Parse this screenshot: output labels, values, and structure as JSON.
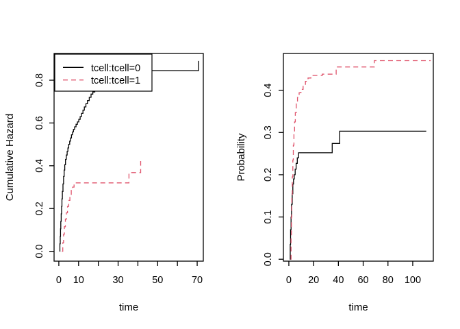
{
  "figure": {
    "background": "#ffffff",
    "curve_black": "#000000",
    "curve_pink": "#DF536B"
  },
  "chart_data": [
    {
      "type": "line",
      "subtype": "step-survival-curve",
      "title": "",
      "xlabel": "time",
      "ylabel": "Cumulative Hazard",
      "xlim": [
        -2.4,
        73.1
      ],
      "ylim": [
        -0.046,
        0.925
      ],
      "xticks": [
        0,
        10,
        20,
        30,
        40,
        50,
        60,
        70
      ],
      "xtick_labels": [
        "0",
        "10",
        "",
        "30",
        "",
        "50",
        "",
        "70"
      ],
      "yticks": [
        0,
        0.2,
        0.4,
        0.6,
        0.8
      ],
      "ytick_labels": [
        "0.0",
        "0.2",
        "0.4",
        "0.6",
        "0.8"
      ],
      "grid": false,
      "legend": {
        "visible": true,
        "position": "topleft",
        "entries": [
          "tcell:tcell=0",
          "tcell:tcell=1"
        ]
      },
      "series": [
        {
          "name": "tcell:tcell=0",
          "color": "#000000",
          "line_style": "solid",
          "points": [
            [
              0.4,
              0
            ],
            [
              0.55,
              0.035
            ],
            [
              0.7,
              0.07
            ],
            [
              0.85,
              0.105
            ],
            [
              1.0,
              0.14
            ],
            [
              1.2,
              0.175
            ],
            [
              1.4,
              0.21
            ],
            [
              1.6,
              0.245
            ],
            [
              1.8,
              0.28
            ],
            [
              2.1,
              0.315
            ],
            [
              2.4,
              0.35
            ],
            [
              2.7,
              0.38
            ],
            [
              3.0,
              0.405
            ],
            [
              3.4,
              0.43
            ],
            [
              3.8,
              0.45
            ],
            [
              4.2,
              0.467
            ],
            [
              4.6,
              0.483
            ],
            [
              5.0,
              0.5
            ],
            [
              5.5,
              0.515
            ],
            [
              5.9,
              0.53
            ],
            [
              6.4,
              0.545
            ],
            [
              6.9,
              0.558
            ],
            [
              7.4,
              0.57
            ],
            [
              8.0,
              0.582
            ],
            [
              8.7,
              0.594
            ],
            [
              9.4,
              0.605
            ],
            [
              10.1,
              0.617
            ],
            [
              10.8,
              0.63
            ],
            [
              11.5,
              0.645
            ],
            [
              12.2,
              0.66
            ],
            [
              12.9,
              0.675
            ],
            [
              13.7,
              0.69
            ],
            [
              14.5,
              0.705
            ],
            [
              15.4,
              0.72
            ],
            [
              16.3,
              0.735
            ],
            [
              17.2,
              0.745
            ],
            [
              18.2,
              0.755
            ],
            [
              19.5,
              0.765
            ],
            [
              21.0,
              0.776
            ],
            [
              23.0,
              0.787
            ],
            [
              25.0,
              0.797
            ],
            [
              27.5,
              0.807
            ],
            [
              30.0,
              0.817
            ],
            [
              33.0,
              0.827
            ],
            [
              36.0,
              0.837
            ],
            [
              39.0,
              0.845
            ],
            [
              70.5,
              0.845
            ],
            [
              70.7,
              0.89
            ]
          ]
        },
        {
          "name": "tcell:tcell=1",
          "color": "#DF536B",
          "line_style": "dashed",
          "points": [
            [
              1.6,
              0
            ],
            [
              2.0,
              0.04
            ],
            [
              2.4,
              0.08
            ],
            [
              2.8,
              0.115
            ],
            [
              3.3,
              0.15
            ],
            [
              3.8,
              0.18
            ],
            [
              4.4,
              0.21
            ],
            [
              5.0,
              0.238
            ],
            [
              5.6,
              0.262
            ],
            [
              6.3,
              0.285
            ],
            [
              7.0,
              0.3
            ],
            [
              7.7,
              0.312
            ],
            [
              8.4,
              0.32
            ],
            [
              35.3,
              0.32
            ],
            [
              35.5,
              0.368
            ],
            [
              41.2,
              0.368
            ],
            [
              41.4,
              0.422
            ]
          ]
        }
      ]
    },
    {
      "type": "line",
      "subtype": "step-survival-curve",
      "title": "",
      "xlabel": "time",
      "ylabel": "Probability",
      "xlim": [
        -4.4,
        116.6
      ],
      "ylim": [
        -0.0045,
        0.487
      ],
      "xticks": [
        0,
        20,
        40,
        60,
        80,
        100
      ],
      "xtick_labels": [
        "0",
        "20",
        "40",
        "60",
        "80",
        "100"
      ],
      "yticks": [
        0,
        0.1,
        0.2,
        0.3,
        0.4
      ],
      "ytick_labels": [
        "0.0",
        "0.1",
        "0.2",
        "0.3",
        "0.4"
      ],
      "grid": false,
      "legend": {
        "visible": false,
        "position": "",
        "entries": []
      },
      "series": [
        {
          "name": "tcell:tcell=0",
          "color": "#000000",
          "line_style": "solid",
          "points": [
            [
              0.8,
              0
            ],
            [
              1.1,
              0.035
            ],
            [
              1.4,
              0.07
            ],
            [
              1.8,
              0.1
            ],
            [
              2.2,
              0.13
            ],
            [
              2.7,
              0.155
            ],
            [
              3.2,
              0.178
            ],
            [
              3.8,
              0.19
            ],
            [
              4.4,
              0.2
            ],
            [
              5.1,
              0.213
            ],
            [
              5.9,
              0.227
            ],
            [
              6.8,
              0.24
            ],
            [
              7.8,
              0.252
            ],
            [
              34.8,
              0.252
            ],
            [
              35.0,
              0.274
            ],
            [
              40.8,
              0.274
            ],
            [
              41.0,
              0.303
            ],
            [
              110.9,
              0.303
            ]
          ]
        },
        {
          "name": "tcell:tcell=1",
          "color": "#DF536B",
          "line_style": "dashed",
          "points": [
            [
              1.5,
              0
            ],
            [
              1.8,
              0.05
            ],
            [
              2.1,
              0.1
            ],
            [
              2.4,
              0.15
            ],
            [
              2.8,
              0.195
            ],
            [
              3.2,
              0.235
            ],
            [
              3.6,
              0.27
            ],
            [
              4.1,
              0.3
            ],
            [
              4.6,
              0.325
            ],
            [
              5.2,
              0.347
            ],
            [
              6.0,
              0.368
            ],
            [
              7.0,
              0.383
            ],
            [
              8.3,
              0.394
            ],
            [
              9.8,
              0.402
            ],
            [
              11.5,
              0.412
            ],
            [
              13.4,
              0.421
            ],
            [
              15.5,
              0.429
            ],
            [
              17.8,
              0.435
            ],
            [
              27.0,
              0.438
            ],
            [
              37.8,
              0.438
            ],
            [
              38.2,
              0.455
            ],
            [
              68.5,
              0.455
            ],
            [
              69.0,
              0.47
            ],
            [
              114.5,
              0.47
            ]
          ]
        }
      ]
    }
  ]
}
